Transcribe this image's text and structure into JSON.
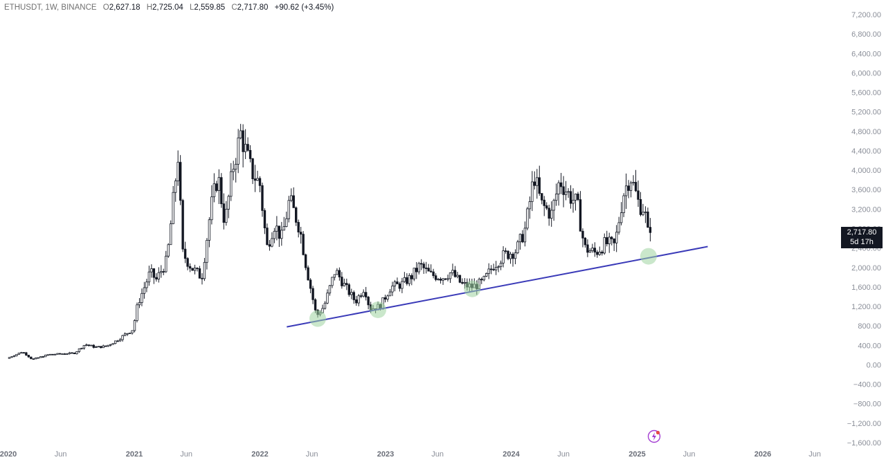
{
  "legend": {
    "symbol": "ETHUSDT, 1W, BINANCE",
    "o_label": "O",
    "o_value": "2,627.18",
    "h_label": "H",
    "h_value": "2,725.04",
    "l_label": "L",
    "l_value": "2,559.85",
    "c_label": "C",
    "c_value": "2,717.80",
    "change": "+90.62 (+3.45%)"
  },
  "price_tag": {
    "price": "2,717.80",
    "countdown": "5d 17h"
  },
  "colors": {
    "candle": "#131722",
    "trendline": "#3a3ab8",
    "touch_circle": "#9ed3a0",
    "price_tag_bg": "#131722",
    "flash_icon": "#a23ad1"
  },
  "chart_data": {
    "type": "candlestick",
    "symbol": "ETHUSDT",
    "interval": "1W",
    "exchange": "BINANCE",
    "ylim": [
      -1600,
      7200
    ],
    "y_ticks": [
      7200,
      6800,
      6400,
      6000,
      5600,
      5200,
      4800,
      4400,
      4000,
      3600,
      3200,
      2800,
      2400,
      2000,
      1600,
      1200,
      800,
      400,
      0,
      -400,
      -800,
      -1200,
      -1600
    ],
    "y_tick_labels": [
      "7,200.00",
      "6,800.00",
      "6,400.00",
      "6,000.00",
      "5,600.00",
      "5,200.00",
      "4,800.00",
      "4,400.00",
      "4,000.00",
      "3,600.00",
      "3,200.00",
      "2,800.00",
      "2,400.00",
      "2,000.00",
      "1,600.00",
      "1,200.00",
      "800.00",
      "400.00",
      "0.00",
      "−400.00",
      "−800.00",
      "−1,200.00",
      "−1,600.00"
    ],
    "x_ticks": [
      {
        "label": "2020",
        "date": "2020-01-01",
        "year": true
      },
      {
        "label": "Jun",
        "date": "2020-06-01",
        "year": false
      },
      {
        "label": "2021",
        "date": "2021-01-01",
        "year": true
      },
      {
        "label": "Jun",
        "date": "2021-06-01",
        "year": false
      },
      {
        "label": "2022",
        "date": "2022-01-01",
        "year": true
      },
      {
        "label": "Jun",
        "date": "2022-06-01",
        "year": false
      },
      {
        "label": "2023",
        "date": "2023-01-01",
        "year": true
      },
      {
        "label": "Jun",
        "date": "2023-06-01",
        "year": false
      },
      {
        "label": "2024",
        "date": "2024-01-01",
        "year": true
      },
      {
        "label": "Jun",
        "date": "2024-06-01",
        "year": false
      },
      {
        "label": "2025",
        "date": "2025-01-01",
        "year": true
      },
      {
        "label": "Jun",
        "date": "2025-06-01",
        "year": false
      },
      {
        "label": "2026",
        "date": "2026-01-01",
        "year": true
      },
      {
        "label": "Jun",
        "date": "2026-06-01",
        "year": false
      }
    ],
    "price_path": [
      [
        "2020-01-01",
        130
      ],
      [
        "2020-02-15",
        270
      ],
      [
        "2020-03-15",
        110
      ],
      [
        "2020-05-01",
        210
      ],
      [
        "2020-06-15",
        230
      ],
      [
        "2020-07-15",
        240
      ],
      [
        "2020-08-15",
        420
      ],
      [
        "2020-09-15",
        360
      ],
      [
        "2020-10-15",
        380
      ],
      [
        "2020-11-15",
        500
      ],
      [
        "2020-12-15",
        650
      ],
      [
        "2021-01-01",
        730
      ],
      [
        "2021-01-15",
        1250
      ],
      [
        "2021-02-20",
        1900
      ],
      [
        "2021-03-10",
        1750
      ],
      [
        "2021-04-10",
        2150
      ],
      [
        "2021-05-12",
        4300
      ],
      [
        "2021-05-25",
        2300
      ],
      [
        "2021-06-20",
        2000
      ],
      [
        "2021-07-20",
        1800
      ],
      [
        "2021-08-15",
        3200
      ],
      [
        "2021-09-05",
        3900
      ],
      [
        "2021-09-25",
        2900
      ],
      [
        "2021-10-20",
        4100
      ],
      [
        "2021-11-10",
        4750
      ],
      [
        "2021-12-10",
        4000
      ],
      [
        "2022-01-05",
        3700
      ],
      [
        "2022-01-25",
        2400
      ],
      [
        "2022-02-15",
        2900
      ],
      [
        "2022-03-10",
        2600
      ],
      [
        "2022-04-01",
        3400
      ],
      [
        "2022-05-01",
        2800
      ],
      [
        "2022-05-20",
        2000
      ],
      [
        "2022-06-18",
        1000
      ],
      [
        "2022-07-10",
        1200
      ],
      [
        "2022-08-12",
        1950
      ],
      [
        "2022-09-10",
        1600
      ],
      [
        "2022-10-10",
        1300
      ],
      [
        "2022-11-05",
        1600
      ],
      [
        "2022-11-20",
        1150
      ],
      [
        "2022-12-20",
        1200
      ],
      [
        "2023-01-20",
        1600
      ],
      [
        "2023-02-20",
        1650
      ],
      [
        "2023-03-20",
        1800
      ],
      [
        "2023-04-15",
        2050
      ],
      [
        "2023-05-15",
        1850
      ],
      [
        "2023-06-20",
        1800
      ],
      [
        "2023-07-15",
        1900
      ],
      [
        "2023-08-15",
        1650
      ],
      [
        "2023-09-15",
        1600
      ],
      [
        "2023-10-15",
        1700
      ],
      [
        "2023-11-15",
        2050
      ],
      [
        "2023-12-15",
        2250
      ],
      [
        "2024-01-20",
        2350
      ],
      [
        "2024-02-15",
        2800
      ],
      [
        "2024-03-12",
        3900
      ],
      [
        "2024-04-01",
        3300
      ],
      [
        "2024-05-01",
        3100
      ],
      [
        "2024-05-25",
        3800
      ],
      [
        "2024-06-20",
        3500
      ],
      [
        "2024-07-15",
        3300
      ],
      [
        "2024-08-05",
        2400
      ],
      [
        "2024-09-05",
        2300
      ],
      [
        "2024-10-05",
        2500
      ],
      [
        "2024-11-01",
        2450
      ],
      [
        "2024-11-25",
        3500
      ],
      [
        "2024-12-16",
        3900
      ],
      [
        "2025-01-10",
        3300
      ],
      [
        "2025-01-27",
        3200
      ],
      [
        "2025-02-03",
        2700
      ],
      [
        "2025-02-10",
        2717.8
      ]
    ],
    "trendline": {
      "start": [
        "2022-03-20",
        780
      ],
      "end": [
        "2025-07-25",
        2430
      ]
    },
    "touch_points": [
      [
        "2022-06-18",
        950
      ],
      [
        "2022-12-10",
        1130
      ],
      [
        "2023-09-10",
        1560
      ],
      [
        "2025-02-03",
        2230
      ]
    ],
    "last_close": 2717.8
  }
}
